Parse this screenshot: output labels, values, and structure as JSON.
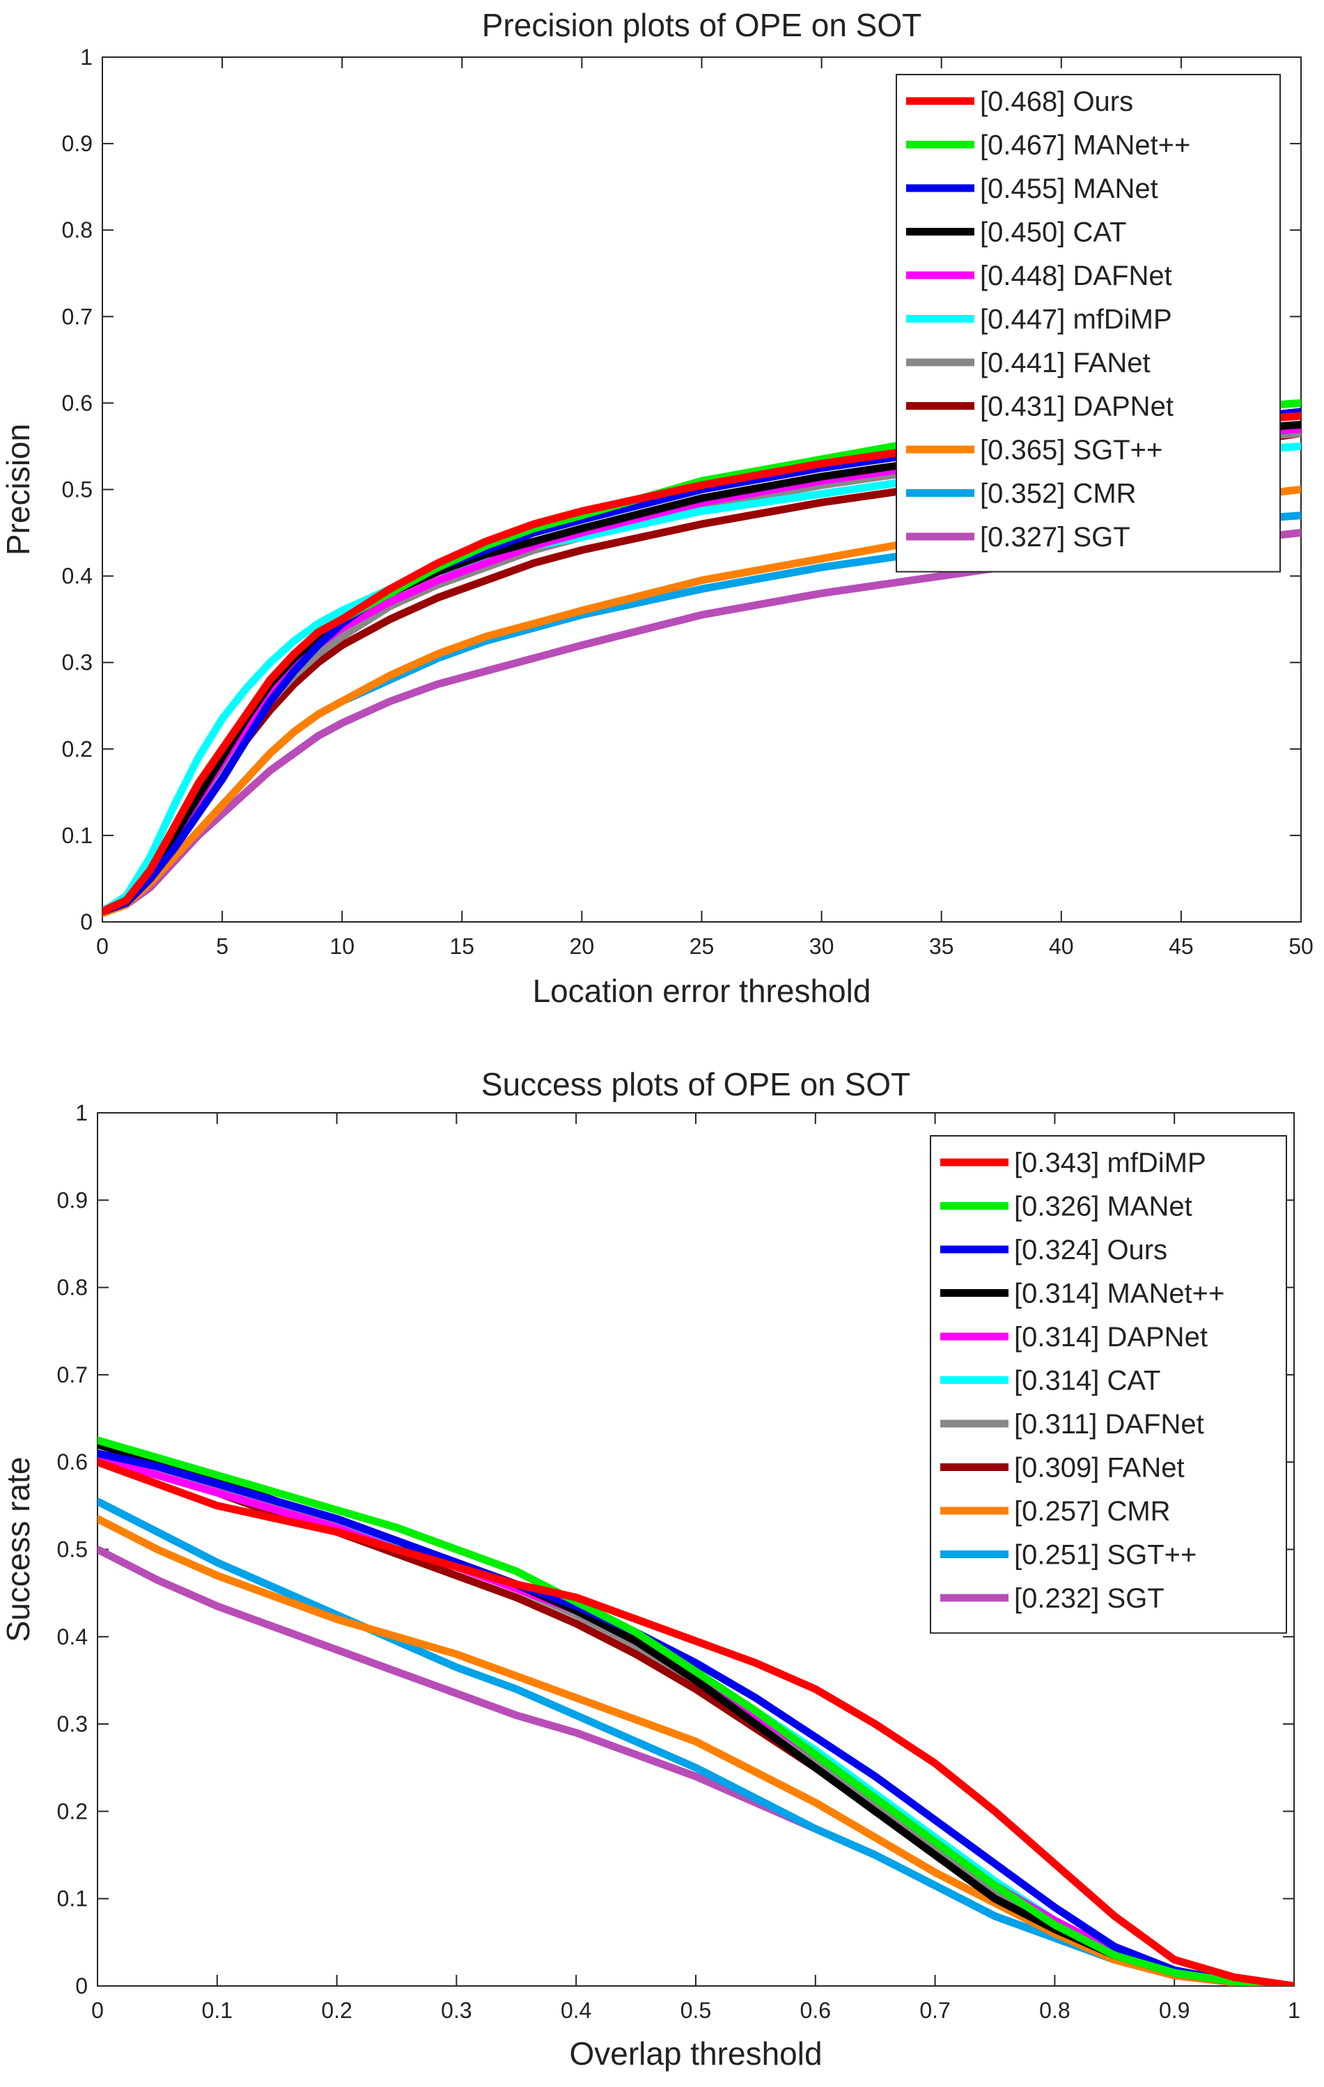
{
  "chart_data": [
    {
      "type": "line",
      "title": "Precision plots of OPE on SOT",
      "xlabel": "Location error threshold",
      "ylabel": "Precision",
      "xlim": [
        0,
        50
      ],
      "ylim": [
        0,
        1
      ],
      "xticks": [
        0,
        5,
        10,
        15,
        20,
        25,
        30,
        35,
        40,
        45,
        50
      ],
      "yticks": [
        0,
        0.1,
        0.2,
        0.3,
        0.4,
        0.5,
        0.6,
        0.7,
        0.8,
        0.9,
        1
      ],
      "xtick_labels": [
        "0",
        "5",
        "10",
        "15",
        "20",
        "25",
        "30",
        "35",
        "40",
        "45",
        "50"
      ],
      "ytick_labels": [
        "0",
        "0.1",
        "0.2",
        "0.3",
        "0.4",
        "0.5",
        "0.6",
        "0.7",
        "0.8",
        "0.9",
        "1"
      ],
      "legend_position": "top-right",
      "x": [
        0,
        1,
        2,
        3,
        4,
        5,
        6,
        7,
        8,
        9,
        10,
        12,
        14,
        16,
        18,
        20,
        25,
        30,
        35,
        40,
        45,
        50
      ],
      "series": [
        {
          "name": "[0.468] Ours",
          "color": "#ff0000",
          "values": [
            0.012,
            0.025,
            0.06,
            0.11,
            0.16,
            0.2,
            0.24,
            0.28,
            0.31,
            0.335,
            0.35,
            0.385,
            0.415,
            0.44,
            0.46,
            0.475,
            0.505,
            0.53,
            0.55,
            0.565,
            0.575,
            0.585
          ]
        },
        {
          "name": "[0.467] MANet++",
          "color": "#00ee00",
          "values": [
            0.012,
            0.025,
            0.06,
            0.11,
            0.16,
            0.2,
            0.24,
            0.28,
            0.31,
            0.335,
            0.35,
            0.38,
            0.41,
            0.435,
            0.455,
            0.47,
            0.51,
            0.535,
            0.56,
            0.575,
            0.59,
            0.6
          ]
        },
        {
          "name": "[0.455] MANet",
          "color": "#0000ee",
          "values": [
            0.012,
            0.022,
            0.05,
            0.085,
            0.125,
            0.165,
            0.21,
            0.255,
            0.29,
            0.32,
            0.345,
            0.385,
            0.41,
            0.43,
            0.45,
            0.465,
            0.5,
            0.525,
            0.545,
            0.56,
            0.575,
            0.59
          ]
        },
        {
          "name": "[0.450] CAT",
          "color": "#000000",
          "values": [
            0.012,
            0.025,
            0.055,
            0.1,
            0.145,
            0.19,
            0.235,
            0.275,
            0.305,
            0.33,
            0.35,
            0.38,
            0.405,
            0.425,
            0.44,
            0.455,
            0.49,
            0.515,
            0.535,
            0.55,
            0.565,
            0.575
          ]
        },
        {
          "name": "[0.448] DAFNet",
          "color": "#ff00ff",
          "values": [
            0.012,
            0.025,
            0.055,
            0.095,
            0.14,
            0.185,
            0.225,
            0.265,
            0.295,
            0.32,
            0.34,
            0.37,
            0.395,
            0.415,
            0.435,
            0.45,
            0.485,
            0.51,
            0.53,
            0.545,
            0.56,
            0.57
          ]
        },
        {
          "name": "[0.447] mfDiMP",
          "color": "#00ffff",
          "values": [
            0.012,
            0.03,
            0.075,
            0.135,
            0.19,
            0.235,
            0.27,
            0.3,
            0.325,
            0.345,
            0.36,
            0.385,
            0.405,
            0.42,
            0.435,
            0.445,
            0.475,
            0.495,
            0.515,
            0.53,
            0.54,
            0.55
          ]
        },
        {
          "name": "[0.441] FANet",
          "color": "#888888",
          "values": [
            0.012,
            0.025,
            0.055,
            0.095,
            0.14,
            0.18,
            0.22,
            0.255,
            0.285,
            0.31,
            0.33,
            0.365,
            0.39,
            0.41,
            0.43,
            0.445,
            0.48,
            0.505,
            0.525,
            0.54,
            0.555,
            0.565
          ]
        },
        {
          "name": "[0.431] DAPNet",
          "color": "#990000",
          "values": [
            0.012,
            0.022,
            0.05,
            0.09,
            0.135,
            0.175,
            0.21,
            0.245,
            0.275,
            0.3,
            0.32,
            0.35,
            0.375,
            0.395,
            0.415,
            0.43,
            0.46,
            0.485,
            0.505,
            0.525,
            0.545,
            0.565
          ]
        },
        {
          "name": "[0.365] SGT++",
          "color": "#ff8000",
          "values": [
            0.01,
            0.02,
            0.045,
            0.075,
            0.105,
            0.135,
            0.165,
            0.195,
            0.22,
            0.24,
            0.255,
            0.285,
            0.31,
            0.33,
            0.345,
            0.36,
            0.395,
            0.42,
            0.445,
            0.465,
            0.485,
            0.5
          ]
        },
        {
          "name": "[0.352] CMR",
          "color": "#00a2e8",
          "values": [
            0.01,
            0.02,
            0.045,
            0.075,
            0.105,
            0.135,
            0.165,
            0.195,
            0.22,
            0.24,
            0.255,
            0.28,
            0.305,
            0.325,
            0.34,
            0.355,
            0.385,
            0.41,
            0.43,
            0.445,
            0.46,
            0.47
          ]
        },
        {
          "name": "[0.327] SGT",
          "color": "#b84db8",
          "values": [
            0.01,
            0.02,
            0.04,
            0.07,
            0.1,
            0.125,
            0.15,
            0.175,
            0.195,
            0.215,
            0.23,
            0.255,
            0.275,
            0.29,
            0.305,
            0.32,
            0.355,
            0.38,
            0.4,
            0.42,
            0.435,
            0.45
          ]
        }
      ]
    },
    {
      "type": "line",
      "title": "Success plots of OPE on SOT",
      "xlabel": "Overlap threshold",
      "ylabel": "Success rate",
      "xlim": [
        0,
        1
      ],
      "ylim": [
        0,
        1
      ],
      "xticks": [
        0,
        0.1,
        0.2,
        0.3,
        0.4,
        0.5,
        0.6,
        0.7,
        0.8,
        0.9,
        1
      ],
      "yticks": [
        0,
        0.1,
        0.2,
        0.3,
        0.4,
        0.5,
        0.6,
        0.7,
        0.8,
        0.9,
        1
      ],
      "xtick_labels": [
        "0",
        "0.1",
        "0.2",
        "0.3",
        "0.4",
        "0.5",
        "0.6",
        "0.7",
        "0.8",
        "0.9",
        "1"
      ],
      "ytick_labels": [
        "0",
        "0.1",
        "0.2",
        "0.3",
        "0.4",
        "0.5",
        "0.6",
        "0.7",
        "0.8",
        "0.9",
        "1"
      ],
      "legend_position": "top-right",
      "x": [
        0,
        0.05,
        0.1,
        0.15,
        0.2,
        0.25,
        0.3,
        0.35,
        0.4,
        0.45,
        0.5,
        0.55,
        0.6,
        0.65,
        0.7,
        0.75,
        0.8,
        0.85,
        0.9,
        0.95,
        1
      ],
      "series": [
        {
          "name": "[0.343] mfDiMP",
          "color": "#ff0000",
          "values": [
            0.6,
            0.575,
            0.55,
            0.535,
            0.52,
            0.5,
            0.48,
            0.46,
            0.445,
            0.42,
            0.395,
            0.37,
            0.34,
            0.3,
            0.255,
            0.2,
            0.14,
            0.08,
            0.03,
            0.01,
            0.0
          ]
        },
        {
          "name": "[0.326] MANet",
          "color": "#00ee00",
          "values": [
            0.625,
            0.605,
            0.585,
            0.565,
            0.545,
            0.525,
            0.5,
            0.475,
            0.44,
            0.405,
            0.36,
            0.315,
            0.265,
            0.215,
            0.165,
            0.115,
            0.07,
            0.035,
            0.015,
            0.005,
            0.0
          ]
        },
        {
          "name": "[0.324] Ours",
          "color": "#0000ee",
          "values": [
            0.61,
            0.595,
            0.575,
            0.555,
            0.535,
            0.51,
            0.485,
            0.46,
            0.435,
            0.405,
            0.37,
            0.33,
            0.285,
            0.24,
            0.19,
            0.14,
            0.09,
            0.045,
            0.018,
            0.005,
            0.0
          ]
        },
        {
          "name": "[0.314] MANet++",
          "color": "#000000",
          "values": [
            0.62,
            0.6,
            0.58,
            0.555,
            0.535,
            0.51,
            0.485,
            0.46,
            0.43,
            0.395,
            0.35,
            0.3,
            0.25,
            0.2,
            0.15,
            0.1,
            0.065,
            0.035,
            0.015,
            0.005,
            0.0
          ]
        },
        {
          "name": "[0.314] DAPNet",
          "color": "#ff00ff",
          "values": [
            0.605,
            0.585,
            0.565,
            0.545,
            0.525,
            0.5,
            0.48,
            0.455,
            0.43,
            0.395,
            0.355,
            0.31,
            0.265,
            0.215,
            0.165,
            0.115,
            0.075,
            0.04,
            0.015,
            0.005,
            0.0
          ]
        },
        {
          "name": "[0.314] CAT",
          "color": "#00ffff",
          "values": [
            0.6,
            0.585,
            0.565,
            0.545,
            0.525,
            0.505,
            0.485,
            0.46,
            0.43,
            0.4,
            0.36,
            0.315,
            0.27,
            0.22,
            0.17,
            0.12,
            0.075,
            0.04,
            0.015,
            0.005,
            0.0
          ]
        },
        {
          "name": "[0.311] DAFNet",
          "color": "#888888",
          "values": [
            0.61,
            0.59,
            0.57,
            0.55,
            0.53,
            0.505,
            0.48,
            0.455,
            0.425,
            0.39,
            0.35,
            0.305,
            0.26,
            0.21,
            0.16,
            0.11,
            0.07,
            0.035,
            0.015,
            0.005,
            0.0
          ]
        },
        {
          "name": "[0.309] FANet",
          "color": "#990000",
          "values": [
            0.605,
            0.585,
            0.565,
            0.54,
            0.52,
            0.495,
            0.47,
            0.445,
            0.415,
            0.38,
            0.34,
            0.295,
            0.25,
            0.205,
            0.155,
            0.11,
            0.07,
            0.035,
            0.015,
            0.005,
            0.0
          ]
        },
        {
          "name": "[0.257] CMR",
          "color": "#ff8000",
          "values": [
            0.535,
            0.5,
            0.47,
            0.445,
            0.42,
            0.4,
            0.38,
            0.355,
            0.33,
            0.305,
            0.28,
            0.245,
            0.21,
            0.17,
            0.13,
            0.095,
            0.06,
            0.03,
            0.012,
            0.004,
            0.0
          ]
        },
        {
          "name": "[0.251] SGT++",
          "color": "#00a2e8",
          "values": [
            0.555,
            0.52,
            0.485,
            0.455,
            0.425,
            0.395,
            0.365,
            0.34,
            0.31,
            0.28,
            0.25,
            0.215,
            0.18,
            0.15,
            0.115,
            0.08,
            0.055,
            0.03,
            0.012,
            0.004,
            0.0
          ]
        },
        {
          "name": "[0.232] SGT",
          "color": "#b84db8",
          "values": [
            0.5,
            0.465,
            0.435,
            0.41,
            0.385,
            0.36,
            0.335,
            0.31,
            0.29,
            0.265,
            0.24,
            0.21,
            0.18,
            0.15,
            0.115,
            0.08,
            0.055,
            0.03,
            0.012,
            0.004,
            0.0
          ]
        }
      ]
    }
  ]
}
